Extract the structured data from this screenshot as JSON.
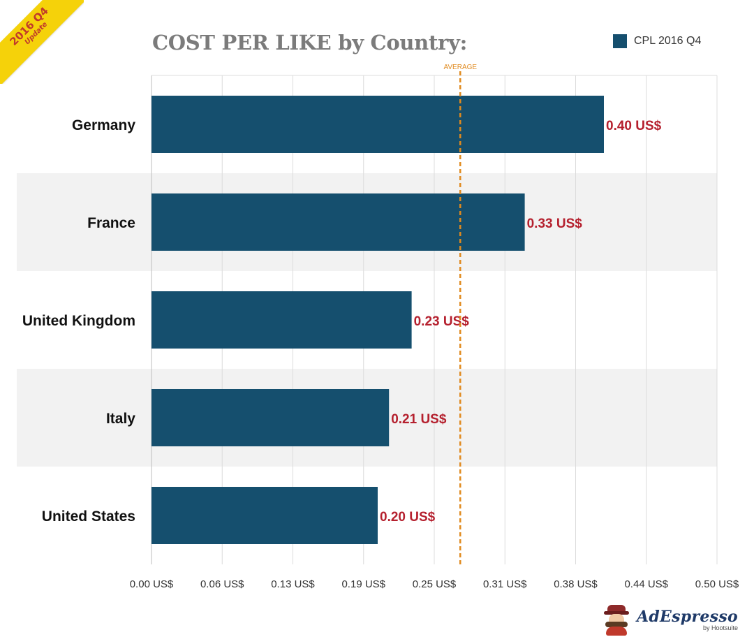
{
  "badge": {
    "line1": "2016 Q4",
    "line2": "Update"
  },
  "title": "COST PER LIKE by Country:",
  "legend": {
    "label": "CPL 2016 Q4",
    "color": "#154f6e"
  },
  "chart_data": {
    "type": "bar",
    "orientation": "horizontal",
    "title": "COST PER LIKE by Country:",
    "categories": [
      "Germany",
      "France",
      "United Kingdom",
      "Italy",
      "United States"
    ],
    "series": [
      {
        "name": "CPL 2016 Q4",
        "values": [
          0.4,
          0.33,
          0.23,
          0.21,
          0.2
        ],
        "color": "#154f6e"
      }
    ],
    "data_labels": [
      "0.40 US$",
      "0.33 US$",
      "0.23 US$",
      "0.21 US$",
      "0.20 US$"
    ],
    "x_ticks": [
      0.0,
      0.0625,
      0.125,
      0.1875,
      0.25,
      0.3125,
      0.375,
      0.4375,
      0.5
    ],
    "x_tick_labels": [
      "0.00 US$",
      "0.06 US$",
      "0.13 US$",
      "0.19 US$",
      "0.25 US$",
      "0.31 US$",
      "0.38 US$",
      "0.44 US$",
      "0.50 US$"
    ],
    "xlim": [
      0,
      0.5
    ],
    "average": {
      "label": "AVERAGE",
      "value": 0.273,
      "color": "#e08a1e"
    },
    "grid": true,
    "alternating_row_shading": true,
    "legend_position": "top-right",
    "label_color": "#b5202e"
  },
  "logo": {
    "name": "AdEspresso",
    "sub": "by Hootsuite"
  }
}
